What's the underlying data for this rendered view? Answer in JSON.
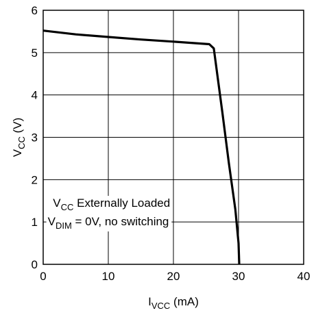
{
  "chart_data": {
    "type": "line",
    "xlabel": {
      "main": "I",
      "sub": "VCC",
      "rest": " (mA)"
    },
    "ylabel": {
      "main": "V",
      "sub": "CC",
      "rest": " (V)"
    },
    "xlim": [
      0,
      40
    ],
    "ylim": [
      0,
      6
    ],
    "x_ticks": [
      0,
      10,
      20,
      30,
      40
    ],
    "y_ticks": [
      0,
      1,
      2,
      3,
      4,
      5,
      6
    ],
    "x_tick_labels": [
      "0",
      "10",
      "20",
      "30",
      "40"
    ],
    "y_tick_labels": [
      "0",
      "1",
      "2",
      "3",
      "4",
      "5",
      "6"
    ],
    "grid": true,
    "line_color": "#000000",
    "annotation": {
      "line1": {
        "main": "V",
        "sub": "CC",
        "rest": " Externally Loaded"
      },
      "line2": {
        "main": "V",
        "sub": "DIM",
        "rest": " = 0V, no switching"
      }
    },
    "series": [
      {
        "x": [
          0,
          5,
          10,
          15,
          20,
          25.5,
          26.2,
          27.5,
          28.5,
          29.5,
          30.0,
          30.1
        ],
        "y": [
          5.52,
          5.43,
          5.37,
          5.31,
          5.26,
          5.2,
          5.1,
          3.6,
          2.4,
          1.3,
          0.5,
          0
        ]
      }
    ]
  }
}
